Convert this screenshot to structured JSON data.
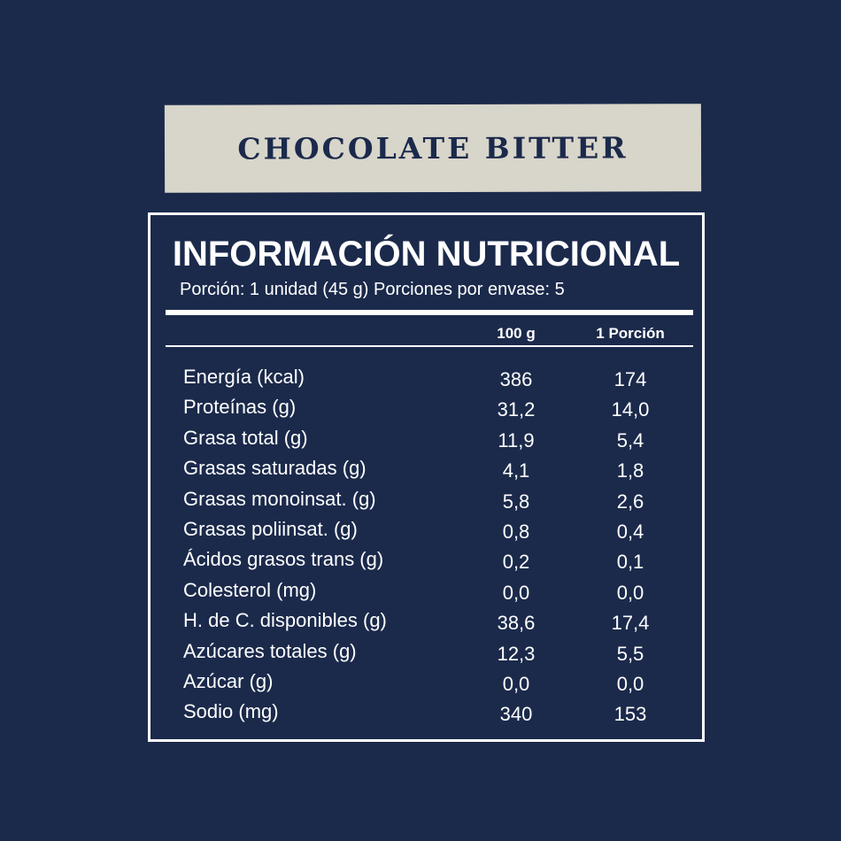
{
  "banner": {
    "product": "CHOCOLATE BITTER"
  },
  "label": {
    "title": "INFORMACIÓN NUTRICIONAL",
    "serving": "Porción: 1 unidad (45 g) Porciones por envase: 5",
    "columns": [
      "100 g",
      "1 Porción"
    ],
    "rows": [
      {
        "name": "Energía (kcal)",
        "per100": "386",
        "perServing": "174"
      },
      {
        "name": "Proteínas (g)",
        "per100": "31,2",
        "perServing": "14,0"
      },
      {
        "name": "Grasa total (g)",
        "per100": "11,9",
        "perServing": "5,4"
      },
      {
        "name": "Grasas saturadas (g)",
        "per100": "4,1",
        "perServing": "1,8"
      },
      {
        "name": "Grasas monoinsat. (g)",
        "per100": "5,8",
        "perServing": "2,6"
      },
      {
        "name": "Grasas poliinsat. (g)",
        "per100": "0,8",
        "perServing": "0,4"
      },
      {
        "name": "Ácidos grasos trans (g)",
        "per100": "0,2",
        "perServing": "0,1"
      },
      {
        "name": "Colesterol (mg)",
        "per100": "0,0",
        "perServing": "0,0"
      },
      {
        "name": "H. de C. disponibles (g)",
        "per100": "38,6",
        "perServing": "17,4"
      },
      {
        "name": "Azúcares totales (g)",
        "per100": "12,3",
        "perServing": "5,5"
      },
      {
        "name": "Azúcar (g)",
        "per100": "0,0",
        "perServing": "0,0"
      },
      {
        "name": "Sodio (mg)",
        "per100": "340",
        "perServing": "153"
      }
    ]
  },
  "colors": {
    "background": "#1b2a4b",
    "banner": "#d8d5ca",
    "text": "#ffffff"
  }
}
